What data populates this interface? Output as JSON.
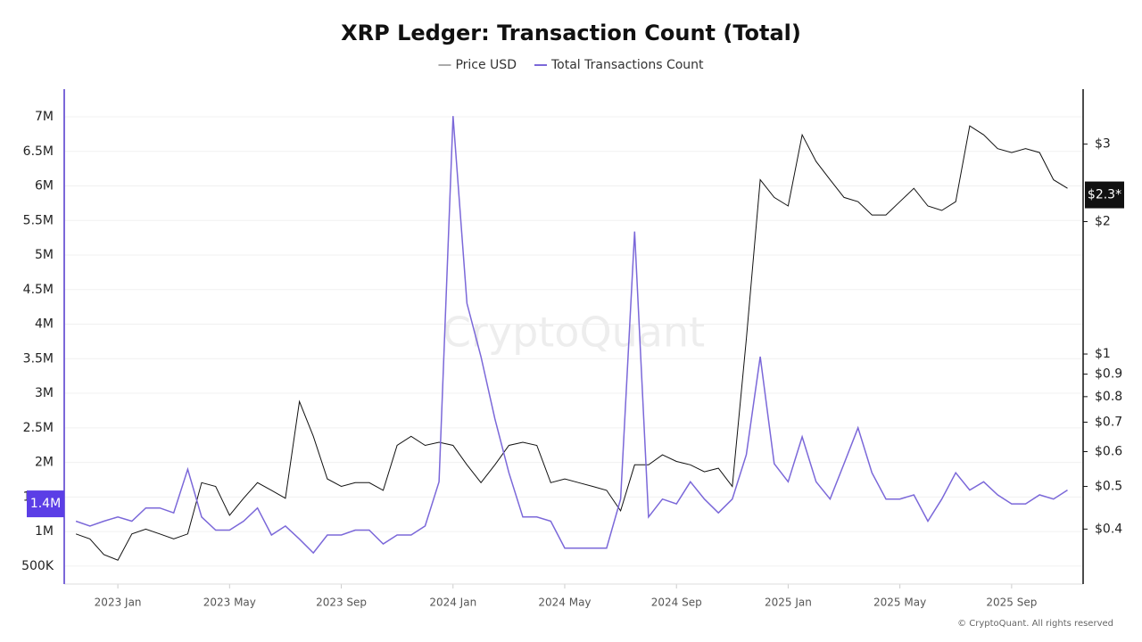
{
  "chart_data": {
    "type": "line",
    "title": "XRP Ledger: Transaction Count (Total)",
    "watermark": "CryptoQuant",
    "footer": "© CryptoQuant. All rights reserved",
    "x": [
      2022.875,
      2022.9167,
      2022.9583,
      2023.0,
      2023.0417,
      2023.0833,
      2023.125,
      2023.1667,
      2023.2083,
      2023.25,
      2023.2917,
      2023.3333,
      2023.375,
      2023.4167,
      2023.4583,
      2023.5,
      2023.5417,
      2023.5833,
      2023.625,
      2023.6667,
      2023.7083,
      2023.75,
      2023.7917,
      2023.8333,
      2023.875,
      2023.9167,
      2023.9583,
      2024.0,
      2024.0417,
      2024.0833,
      2024.125,
      2024.1667,
      2024.2083,
      2024.25,
      2024.2917,
      2024.3333,
      2024.375,
      2024.4167,
      2024.4583,
      2024.5,
      2024.5417,
      2024.5833,
      2024.625,
      2024.6667,
      2024.7083,
      2024.75,
      2024.7917,
      2024.8333,
      2024.875,
      2024.9167,
      2024.9583,
      2025.0,
      2025.0417,
      2025.0833,
      2025.125,
      2025.1667,
      2025.2083,
      2025.25,
      2025.2917,
      2025.3333,
      2025.375,
      2025.4167,
      2025.4583,
      2025.5,
      2025.5417,
      2025.5833,
      2025.625,
      2025.6667,
      2025.7083,
      2025.75,
      2025.7917,
      2025.8333
    ],
    "series": [
      {
        "name": "Price USD",
        "color": "#111111",
        "legend_color": "#aaaaaa",
        "axis": "y2",
        "values": [
          0.39,
          0.38,
          0.35,
          0.34,
          0.39,
          0.4,
          0.39,
          0.38,
          0.39,
          0.51,
          0.5,
          0.43,
          0.47,
          0.51,
          0.49,
          0.47,
          0.78,
          0.65,
          0.52,
          0.5,
          0.51,
          0.51,
          0.49,
          0.62,
          0.65,
          0.62,
          0.63,
          0.62,
          0.56,
          0.51,
          0.56,
          0.62,
          0.63,
          0.62,
          0.51,
          0.52,
          0.51,
          0.5,
          0.49,
          0.44,
          0.56,
          0.56,
          0.59,
          0.57,
          0.56,
          0.54,
          0.55,
          0.5,
          1.08,
          2.49,
          2.27,
          2.17,
          3.15,
          2.74,
          2.49,
          2.27,
          2.22,
          2.07,
          2.07,
          2.22,
          2.38,
          2.17,
          2.12,
          2.22,
          3.3,
          3.15,
          2.93,
          2.87,
          2.93,
          2.87,
          2.49,
          2.38
        ],
        "current": {
          "value": 2.3,
          "label": "$2.3*"
        }
      },
      {
        "name": "Total Transactions Count",
        "color": "#7b68d9",
        "axis": "y",
        "values": [
          1150000,
          1080000,
          1150000,
          1210000,
          1150000,
          1340000,
          1340000,
          1270000,
          1900000,
          1210000,
          1020000,
          1020000,
          1150000,
          1340000,
          950000,
          1080000,
          890000,
          690000,
          950000,
          950000,
          1020000,
          1020000,
          820000,
          950000,
          950000,
          1080000,
          1720000,
          7010000,
          4300000,
          3530000,
          2630000,
          1850000,
          1210000,
          1210000,
          1150000,
          760000,
          760000,
          760000,
          760000,
          1470000,
          5340000,
          1210000,
          1470000,
          1400000,
          1720000,
          1470000,
          1270000,
          1470000,
          2110000,
          3530000,
          1980000,
          1720000,
          2370000,
          1720000,
          1470000,
          1980000,
          2500000,
          1850000,
          1470000,
          1470000,
          1530000,
          1150000,
          1470000,
          1850000,
          1600000,
          1720000,
          1530000,
          1400000,
          1400000,
          1530000,
          1470000,
          1600000
        ],
        "current": {
          "value": 1400000,
          "label": "1.4M"
        }
      }
    ],
    "xlim": [
      2022.84,
      2025.88
    ],
    "xticks": [
      {
        "value": 2023.0,
        "label": "2023 Jan"
      },
      {
        "value": 2023.3333,
        "label": "2023 May"
      },
      {
        "value": 2023.6667,
        "label": "2023 Sep"
      },
      {
        "value": 2024.0,
        "label": "2024 Jan"
      },
      {
        "value": 2024.3333,
        "label": "2024 May"
      },
      {
        "value": 2024.6667,
        "label": "2024 Sep"
      },
      {
        "value": 2025.0,
        "label": "2025 Jan"
      },
      {
        "value": 2025.3333,
        "label": "2025 May"
      },
      {
        "value": 2025.6667,
        "label": "2025 Sep"
      }
    ],
    "ylim": [
      240000,
      7400000
    ],
    "yticks": [
      {
        "value": 500000,
        "label": "500K"
      },
      {
        "value": 1000000,
        "label": "1M"
      },
      {
        "value": 1500000,
        "label": "1.5M"
      },
      {
        "value": 2000000,
        "label": "2M"
      },
      {
        "value": 2500000,
        "label": "2.5M"
      },
      {
        "value": 3000000,
        "label": "3M"
      },
      {
        "value": 3500000,
        "label": "3.5M"
      },
      {
        "value": 4000000,
        "label": "4M"
      },
      {
        "value": 4500000,
        "label": "4.5M"
      },
      {
        "value": 5000000,
        "label": "5M"
      },
      {
        "value": 5500000,
        "label": "5.5M"
      },
      {
        "value": 6000000,
        "label": "6M"
      },
      {
        "value": 6500000,
        "label": "6.5M"
      },
      {
        "value": 7000000,
        "label": "7M"
      }
    ],
    "y2lim": [
      0.3,
      4
    ],
    "y2log": true,
    "y2ticks": [
      {
        "value": 0.4,
        "label": "$0.4"
      },
      {
        "value": 0.5,
        "label": "$0.5"
      },
      {
        "value": 0.6,
        "label": "$0.6"
      },
      {
        "value": 0.7,
        "label": "$0.7"
      },
      {
        "value": 0.8,
        "label": "$0.8"
      },
      {
        "value": 0.9,
        "label": "$0.9"
      },
      {
        "value": 1,
        "label": "$1"
      },
      {
        "value": 2,
        "label": "$2"
      },
      {
        "value": 3,
        "label": "$3"
      }
    ],
    "grid": true
  }
}
